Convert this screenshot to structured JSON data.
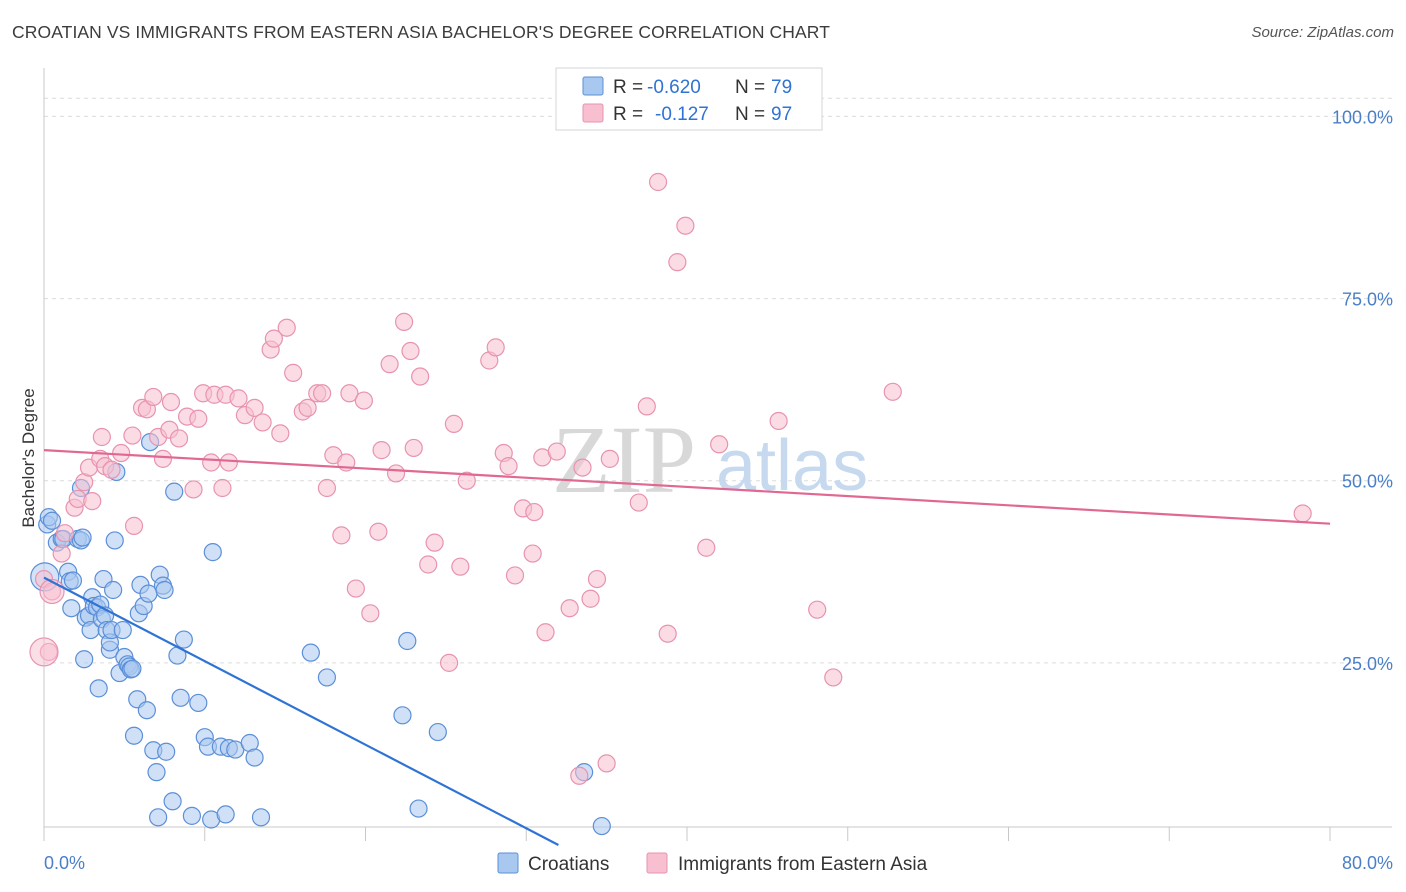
{
  "header": {
    "title": "CROATIAN VS IMMIGRANTS FROM EASTERN ASIA BACHELOR'S DEGREE CORRELATION CHART",
    "source": "Source: ZipAtlas.com"
  },
  "watermark": {
    "zip": "ZIP",
    "atlas": "atlas"
  },
  "legend": {
    "r_label": "R =",
    "n_label": "N =",
    "series1": {
      "r": "-0.620",
      "n": "79"
    },
    "series2": {
      "r": "-0.127",
      "n": "97"
    }
  },
  "bottom_legend": {
    "series1": "Croatians",
    "series2": "Immigrants from Eastern Asia"
  },
  "colors": {
    "croatians_fill": "#a9c8f0",
    "croatians_stroke": "#5b8fd8",
    "croatians_line": "#2f73d4",
    "eastasia_fill": "#f7bfd0",
    "eastasia_stroke": "#e793b0",
    "eastasia_line": "#e06892",
    "tick": "#4a7fc8",
    "grid": "#dcdcdc"
  },
  "chart_data": {
    "type": "scatter",
    "title": "CROATIAN VS IMMIGRANTS FROM EASTERN ASIA BACHELOR'S DEGREE CORRELATION CHART",
    "xlabel": "",
    "ylabel": "Bachelor's Degree",
    "xlim": [
      0,
      80
    ],
    "ylim": [
      0,
      105
    ],
    "x_tick_labels": [
      "0.0%",
      "80.0%"
    ],
    "y_ticks": [
      25,
      50,
      75,
      100
    ],
    "y_tick_labels": [
      "25.0%",
      "50.0%",
      "75.0%",
      "100.0%"
    ],
    "grid": true,
    "legend_placement": "top-center",
    "series": [
      {
        "name": "Croatians",
        "r": -0.62,
        "n": 79,
        "trend": [
          [
            0,
            36.7
          ],
          [
            32,
            0
          ]
        ],
        "points": [
          [
            0.2,
            44
          ],
          [
            0.3,
            45
          ],
          [
            0.5,
            44.5
          ],
          [
            0.8,
            41.5
          ],
          [
            1.1,
            42
          ],
          [
            1.2,
            42
          ],
          [
            1.5,
            37.5
          ],
          [
            1.6,
            36.2
          ],
          [
            1.7,
            32.5
          ],
          [
            1.8,
            36.3
          ],
          [
            2.1,
            42
          ],
          [
            2.3,
            41.8
          ],
          [
            2.3,
            49
          ],
          [
            2.4,
            42.2
          ],
          [
            2.5,
            25.5
          ],
          [
            2.6,
            31.2
          ],
          [
            2.8,
            31.5
          ],
          [
            2.9,
            29.5
          ],
          [
            3.0,
            34
          ],
          [
            3.1,
            32.8
          ],
          [
            3.3,
            32.6
          ],
          [
            3.4,
            21.5
          ],
          [
            3.5,
            33
          ],
          [
            3.6,
            31
          ],
          [
            3.7,
            36.5
          ],
          [
            3.8,
            31.5
          ],
          [
            3.9,
            29.5
          ],
          [
            4.1,
            26.8
          ],
          [
            4.1,
            27.8
          ],
          [
            4.2,
            29.5
          ],
          [
            4.3,
            35
          ],
          [
            4.4,
            41.8
          ],
          [
            4.5,
            51.2
          ],
          [
            4.7,
            23.6
          ],
          [
            4.9,
            29.5
          ],
          [
            5.0,
            25.8
          ],
          [
            5.2,
            24.8
          ],
          [
            5.3,
            24.5
          ],
          [
            5.4,
            24.1
          ],
          [
            5.5,
            24.2
          ],
          [
            5.6,
            15
          ],
          [
            5.8,
            20
          ],
          [
            5.9,
            31.8
          ],
          [
            6.0,
            35.7
          ],
          [
            6.2,
            32.8
          ],
          [
            6.4,
            18.5
          ],
          [
            6.5,
            34.5
          ],
          [
            6.6,
            55.3
          ],
          [
            6.8,
            13
          ],
          [
            7.0,
            10
          ],
          [
            7.1,
            3.8
          ],
          [
            7.2,
            37.1
          ],
          [
            7.4,
            35.6
          ],
          [
            7.5,
            35
          ],
          [
            7.6,
            12.8
          ],
          [
            8.0,
            6
          ],
          [
            8.1,
            48.5
          ],
          [
            8.3,
            26
          ],
          [
            8.5,
            20.2
          ],
          [
            8.7,
            28.2
          ],
          [
            9.2,
            4
          ],
          [
            9.6,
            19.5
          ],
          [
            10.0,
            14.8
          ],
          [
            10.2,
            13.5
          ],
          [
            10.4,
            3.5
          ],
          [
            10.5,
            40.2
          ],
          [
            11.0,
            13.5
          ],
          [
            11.3,
            4.2
          ],
          [
            11.5,
            13.3
          ],
          [
            11.9,
            13.1
          ],
          [
            12.8,
            14
          ],
          [
            13.1,
            12
          ],
          [
            13.5,
            3.8
          ],
          [
            16.6,
            26.4
          ],
          [
            17.6,
            23
          ],
          [
            22.3,
            17.8
          ],
          [
            22.6,
            28
          ],
          [
            23.3,
            5
          ],
          [
            24.5,
            15.5
          ],
          [
            33.6,
            10
          ],
          [
            34.7,
            2.6
          ]
        ]
      },
      {
        "name": "Immigrants from Eastern Asia",
        "r": -0.127,
        "n": 97,
        "trend": [
          [
            0,
            54.2
          ],
          [
            80,
            44.1
          ]
        ],
        "points": [
          [
            0.0,
            36.5
          ],
          [
            0.3,
            26.5
          ],
          [
            0.5,
            34.8
          ],
          [
            1.1,
            40
          ],
          [
            1.3,
            42.8
          ],
          [
            1.9,
            46.3
          ],
          [
            2.1,
            47.5
          ],
          [
            2.5,
            49.8
          ],
          [
            2.8,
            51.8
          ],
          [
            3.0,
            47.2
          ],
          [
            3.5,
            53
          ],
          [
            3.6,
            56
          ],
          [
            3.8,
            52
          ],
          [
            4.2,
            51.5
          ],
          [
            4.8,
            53.8
          ],
          [
            5.5,
            56.2
          ],
          [
            5.6,
            43.8
          ],
          [
            6.1,
            60
          ],
          [
            6.4,
            59.8
          ],
          [
            6.8,
            61.5
          ],
          [
            7.1,
            56
          ],
          [
            7.4,
            53
          ],
          [
            7.8,
            57
          ],
          [
            7.9,
            60.8
          ],
          [
            8.4,
            55.8
          ],
          [
            8.9,
            58.8
          ],
          [
            9.3,
            48.8
          ],
          [
            9.6,
            58.5
          ],
          [
            9.9,
            62
          ],
          [
            10.4,
            52.5
          ],
          [
            10.6,
            61.8
          ],
          [
            11.1,
            49
          ],
          [
            11.3,
            61.8
          ],
          [
            11.5,
            52.5
          ],
          [
            12.1,
            61.3
          ],
          [
            12.5,
            59
          ],
          [
            13.1,
            60
          ],
          [
            13.6,
            58
          ],
          [
            14.1,
            68
          ],
          [
            14.3,
            69.5
          ],
          [
            14.7,
            56.5
          ],
          [
            15.1,
            71
          ],
          [
            15.5,
            64.8
          ],
          [
            16.1,
            59.5
          ],
          [
            16.4,
            60
          ],
          [
            17.0,
            62
          ],
          [
            17.3,
            62
          ],
          [
            17.6,
            49
          ],
          [
            18.0,
            53.5
          ],
          [
            18.5,
            42.5
          ],
          [
            18.8,
            52.5
          ],
          [
            19.0,
            62
          ],
          [
            19.4,
            35.2
          ],
          [
            19.9,
            61
          ],
          [
            20.3,
            31.8
          ],
          [
            20.8,
            43
          ],
          [
            21.0,
            54.2
          ],
          [
            21.5,
            66
          ],
          [
            21.9,
            51
          ],
          [
            22.4,
            71.8
          ],
          [
            22.8,
            67.8
          ],
          [
            23.0,
            54.5
          ],
          [
            23.4,
            64.3
          ],
          [
            23.9,
            38.5
          ],
          [
            24.3,
            41.5
          ],
          [
            25.2,
            25
          ],
          [
            25.5,
            57.8
          ],
          [
            25.9,
            38.2
          ],
          [
            26.3,
            50
          ],
          [
            27.7,
            66.5
          ],
          [
            28.1,
            68.3
          ],
          [
            28.6,
            53.8
          ],
          [
            28.9,
            52
          ],
          [
            29.3,
            37
          ],
          [
            29.8,
            46.2
          ],
          [
            30.4,
            40
          ],
          [
            30.5,
            45.7
          ],
          [
            31.0,
            53.2
          ],
          [
            31.2,
            29.2
          ],
          [
            31.9,
            54
          ],
          [
            32.7,
            32.5
          ],
          [
            33.3,
            9.5
          ],
          [
            33.5,
            51.8
          ],
          [
            34.0,
            33.8
          ],
          [
            34.4,
            36.5
          ],
          [
            35.0,
            11.2
          ],
          [
            35.2,
            53
          ],
          [
            37.0,
            47
          ],
          [
            37.5,
            60.2
          ],
          [
            38.2,
            91
          ],
          [
            38.8,
            29
          ],
          [
            39.4,
            80
          ],
          [
            39.9,
            85
          ],
          [
            41.2,
            40.8
          ],
          [
            42.0,
            55
          ],
          [
            45.7,
            58.2
          ],
          [
            48.1,
            32.3
          ],
          [
            49.1,
            23
          ],
          [
            52.8,
            62.2
          ],
          [
            78.3,
            45.5
          ]
        ]
      }
    ]
  }
}
